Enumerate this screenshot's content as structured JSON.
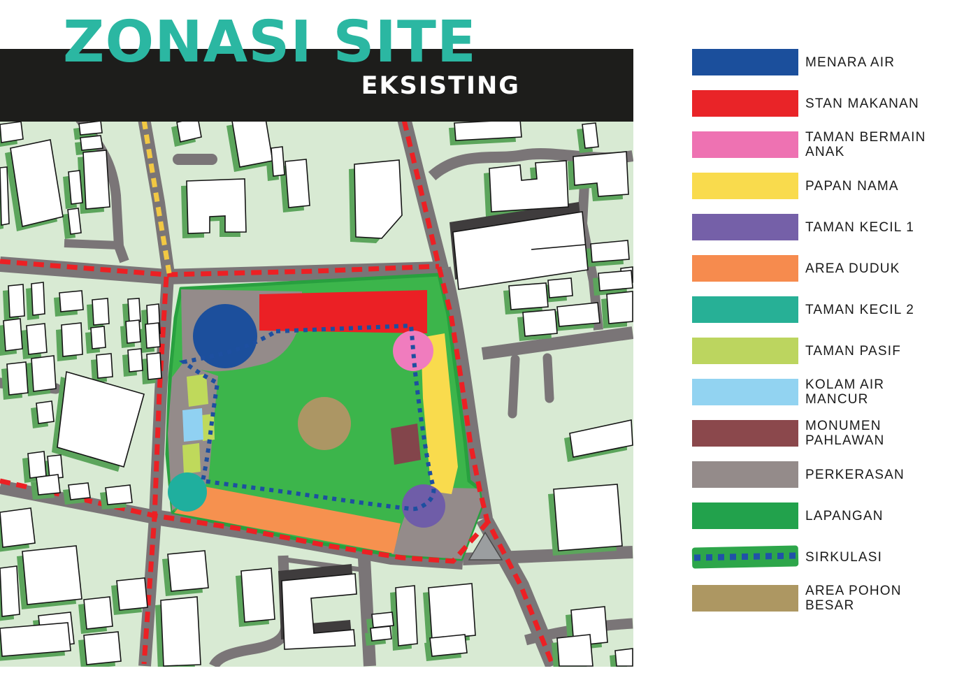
{
  "title": {
    "main": "ZONASI SITE",
    "sub": "EKSISTING"
  },
  "legend": {
    "items": [
      {
        "key": "menara_air",
        "label": "MENARA AIR",
        "color": "#1b4f9c"
      },
      {
        "key": "stan_makanan",
        "label": "STAN MAKANAN",
        "color": "#e92428"
      },
      {
        "key": "taman_bermain_anak",
        "label": "TAMAN BERMAIN\nANAK",
        "color": "#ee72b2"
      },
      {
        "key": "papan_nama",
        "label": "PAPAN NAMA",
        "color": "#f9db4d"
      },
      {
        "key": "taman_kecil_1",
        "label": "TAMAN KECIL 1",
        "color": "#7560a8"
      },
      {
        "key": "area_duduk",
        "label": "AREA DUDUK",
        "color": "#f68b4e"
      },
      {
        "key": "taman_kecil_2",
        "label": "TAMAN KECIL 2",
        "color": "#27b096"
      },
      {
        "key": "taman_pasif",
        "label": "TAMAN PASIF",
        "color": "#bcd55f"
      },
      {
        "key": "kolam_air_mancur",
        "label": "KOLAM AIR\nMANCUR",
        "color": "#92d3f1"
      },
      {
        "key": "monumen_pahlawan",
        "label": "MONUMEN\nPAHLAWAN",
        "color": "#8b484c"
      },
      {
        "key": "perkerasan",
        "label": "PERKERASAN",
        "color": "#948b8a"
      },
      {
        "key": "lapangan",
        "label": "LAPANGAN",
        "color": "#22a24c"
      },
      {
        "key": "sirkulasi",
        "label": "SIRKULASI",
        "color": "#2da64a",
        "dash_color": "#2052a8",
        "style": "dashed-line"
      },
      {
        "key": "area_pohon_besar",
        "label": "AREA POHON\nBESAR",
        "color": "#ad9762"
      }
    ]
  },
  "map": {
    "zone_colors": {
      "menara_air": "#1c4f9c",
      "stan_makanan": "#eb2025",
      "taman_bermain_anak": "#f07cbe",
      "papan_nama": "#f9db4d",
      "taman_kecil_1": "#6f5da8",
      "area_duduk": "#f6914f",
      "taman_kecil_2": "#1faf9e",
      "taman_pasif": "#bfd95b",
      "kolam_air_mancur": "#90d1f2",
      "monumen_pahlawan": "#83454b",
      "perkerasan": "#948b8a",
      "lapangan": "#3cb54b",
      "sirkulasi": "#1d4fa0",
      "area_pohon_besar": "#ac9664"
    },
    "colors": {
      "background": "#d8ead3",
      "road": "#7a7577",
      "building": "#ffffff",
      "building_outline": "#141414",
      "building_shadow": "#5ca55c",
      "building_shadow_dark": "#3f3c3d",
      "boundary_dash": "#ec2024",
      "secondary_dash": "#f2c843",
      "park_border": "#28a03f",
      "island": "#9b9ea0"
    }
  }
}
